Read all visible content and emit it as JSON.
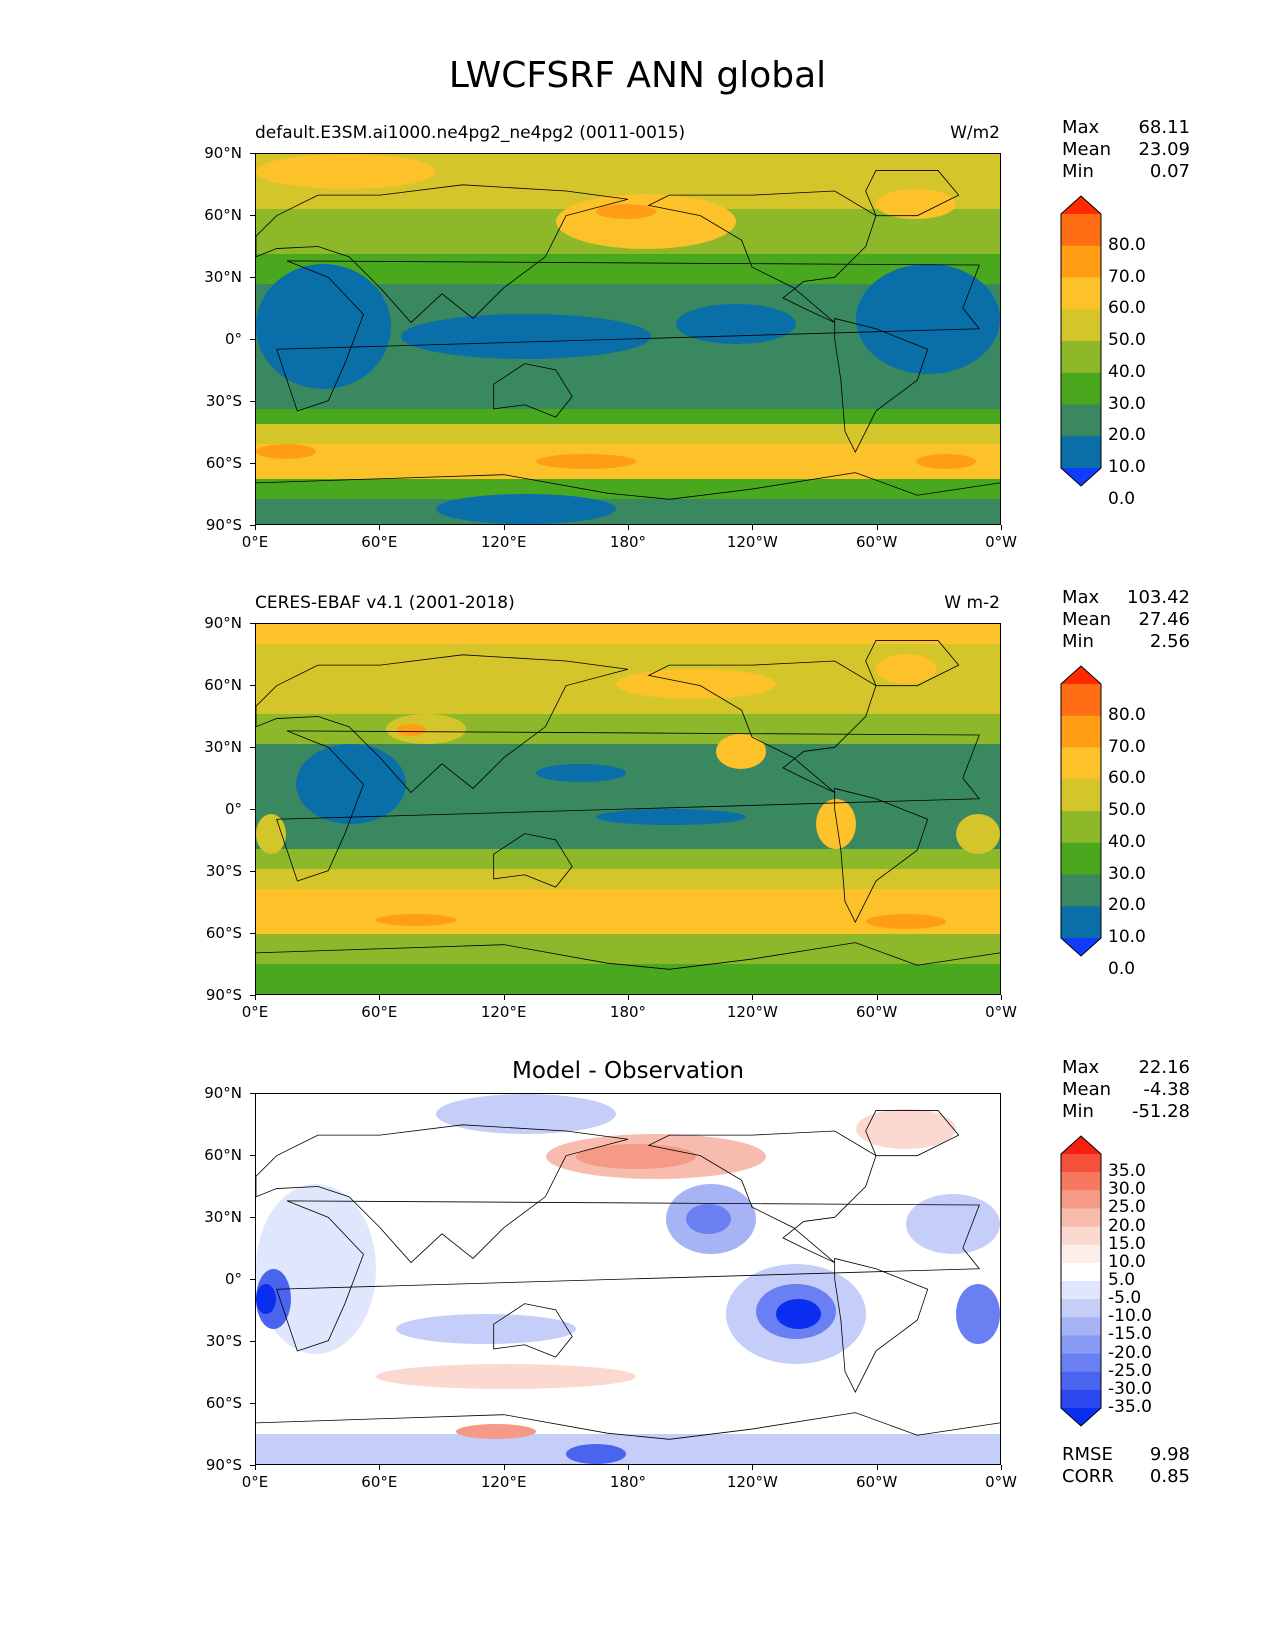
{
  "figure": {
    "title": "LWCFSRF ANN global"
  },
  "axes": {
    "y_ticks": [
      "90°N",
      "60°N",
      "30°N",
      "0°",
      "30°S",
      "60°S",
      "90°S"
    ],
    "x_ticks": [
      "0°E",
      "60°E",
      "120°E",
      "180°",
      "120°W",
      "60°W",
      "0°W"
    ]
  },
  "panels": [
    {
      "left_title": "default.E3SM.ai1000.ne4pg2_ne4pg2 (0011-0015)",
      "right_title": "W/m2",
      "center_title": "",
      "stats": [
        {
          "label": "Max",
          "value": "68.11"
        },
        {
          "label": "Mean",
          "value": "23.09"
        },
        {
          "label": "Min",
          "value": "0.07"
        }
      ],
      "colorbar": {
        "labels": [
          "80.0",
          "70.0",
          "60.0",
          "50.0",
          "40.0",
          "30.0",
          "20.0",
          "10.0",
          "0.0"
        ],
        "colors": [
          "#ff2a00",
          "#ff6e14",
          "#ff9e14",
          "#fdc12a",
          "#d4c62a",
          "#8db82a",
          "#4aa81e",
          "#3a8860",
          "#0a6ea8",
          "#0f3cff"
        ]
      }
    },
    {
      "left_title": "CERES-EBAF v4.1 (2001-2018)",
      "right_title": "W m-2",
      "center_title": "",
      "stats": [
        {
          "label": "Max",
          "value": "103.42"
        },
        {
          "label": "Mean",
          "value": "27.46"
        },
        {
          "label": "Min",
          "value": "2.56"
        }
      ],
      "colorbar": {
        "labels": [
          "80.0",
          "70.0",
          "60.0",
          "50.0",
          "40.0",
          "30.0",
          "20.0",
          "10.0",
          "0.0"
        ],
        "colors": [
          "#ff2a00",
          "#ff6e14",
          "#ff9e14",
          "#fdc12a",
          "#d4c62a",
          "#8db82a",
          "#4aa81e",
          "#3a8860",
          "#0a6ea8",
          "#0f3cff"
        ]
      }
    },
    {
      "left_title": "",
      "right_title": "",
      "center_title": "Model - Observation",
      "stats": [
        {
          "label": "Max",
          "value": "22.16"
        },
        {
          "label": "Mean",
          "value": "-4.38"
        },
        {
          "label": "Min",
          "value": "-51.28"
        }
      ],
      "extra_stats": [
        {
          "label": "RMSE",
          "value": "9.98"
        },
        {
          "label": "CORR",
          "value": "0.85"
        }
      ],
      "colorbar": {
        "labels": [
          "35.0",
          "30.0",
          "25.0",
          "20.0",
          "15.0",
          "10.0",
          "5.0",
          "-5.0",
          "-10.0",
          "-15.0",
          "-20.0",
          "-25.0",
          "-30.0",
          "-35.0"
        ],
        "colors": [
          "#f5200f",
          "#f5503a",
          "#f5785f",
          "#f59a86",
          "#f8bcae",
          "#fbd8d0",
          "#fdeeea",
          "#ffffff",
          "#e0e6fb",
          "#c4cef8",
          "#a6b4f6",
          "#889af4",
          "#6a80f2",
          "#4a64f0",
          "#2a48ee",
          "#0a2ef0"
        ]
      }
    }
  ]
}
